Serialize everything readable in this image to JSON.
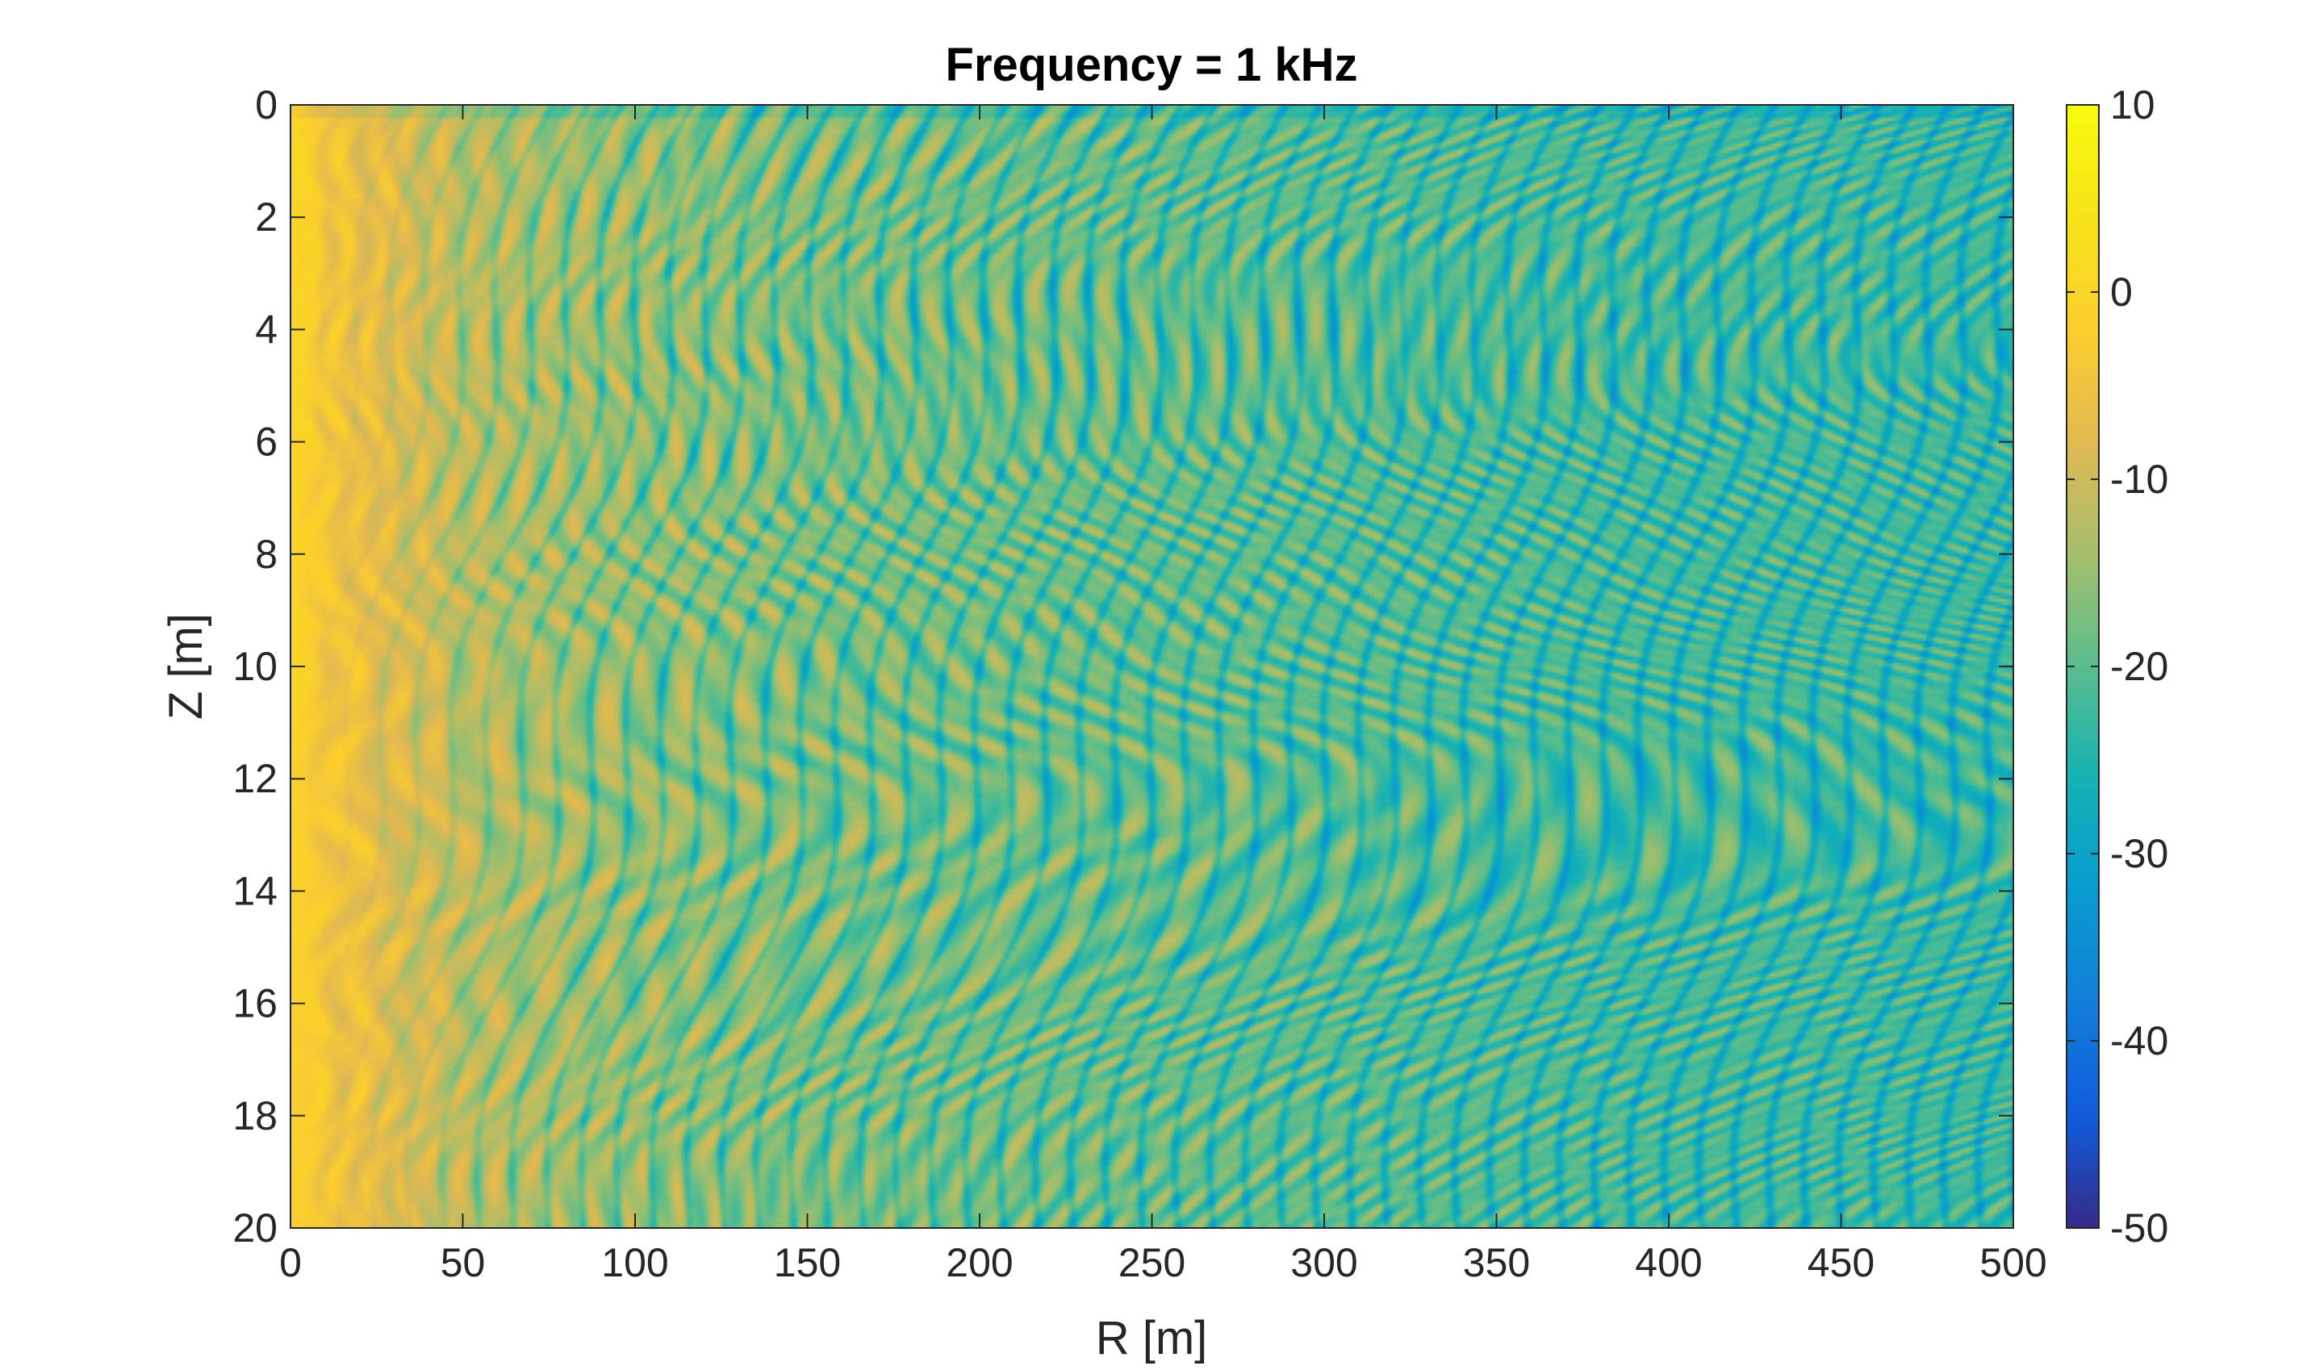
{
  "chart_data": {
    "type": "heatmap",
    "title": "Frequency = 1 kHz",
    "xlabel": "R [m]",
    "ylabel": "Z [m]",
    "xlim": [
      0,
      500
    ],
    "ylim": [
      0,
      20
    ],
    "y_reversed": true,
    "x_ticks": [
      0,
      50,
      100,
      150,
      200,
      250,
      300,
      350,
      400,
      450,
      500
    ],
    "y_ticks": [
      0,
      2,
      4,
      6,
      8,
      10,
      12,
      14,
      16,
      18,
      20
    ],
    "colorbar": {
      "clim": [
        -50,
        10
      ],
      "ticks": [
        10,
        0,
        -10,
        -20,
        -30,
        -40,
        -50
      ],
      "colormap": "parula"
    },
    "grid": false,
    "field_summary": {
      "near_source_max": 3,
      "near_source_range_m": [
        0,
        10
      ],
      "level_at_range": [
        {
          "r": 0,
          "level": -2
        },
        {
          "r": 50,
          "level": -11
        },
        {
          "r": 100,
          "level": -14
        },
        {
          "r": 150,
          "level": -16
        },
        {
          "r": 200,
          "level": -17
        },
        {
          "r": 250,
          "level": -18
        },
        {
          "r": 300,
          "level": -19
        },
        {
          "r": 350,
          "level": -20
        },
        {
          "r": 400,
          "level": -21
        },
        {
          "r": 450,
          "level": -21
        },
        {
          "r": 500,
          "level": -22
        }
      ],
      "interference_nulls_min": -35
    }
  }
}
